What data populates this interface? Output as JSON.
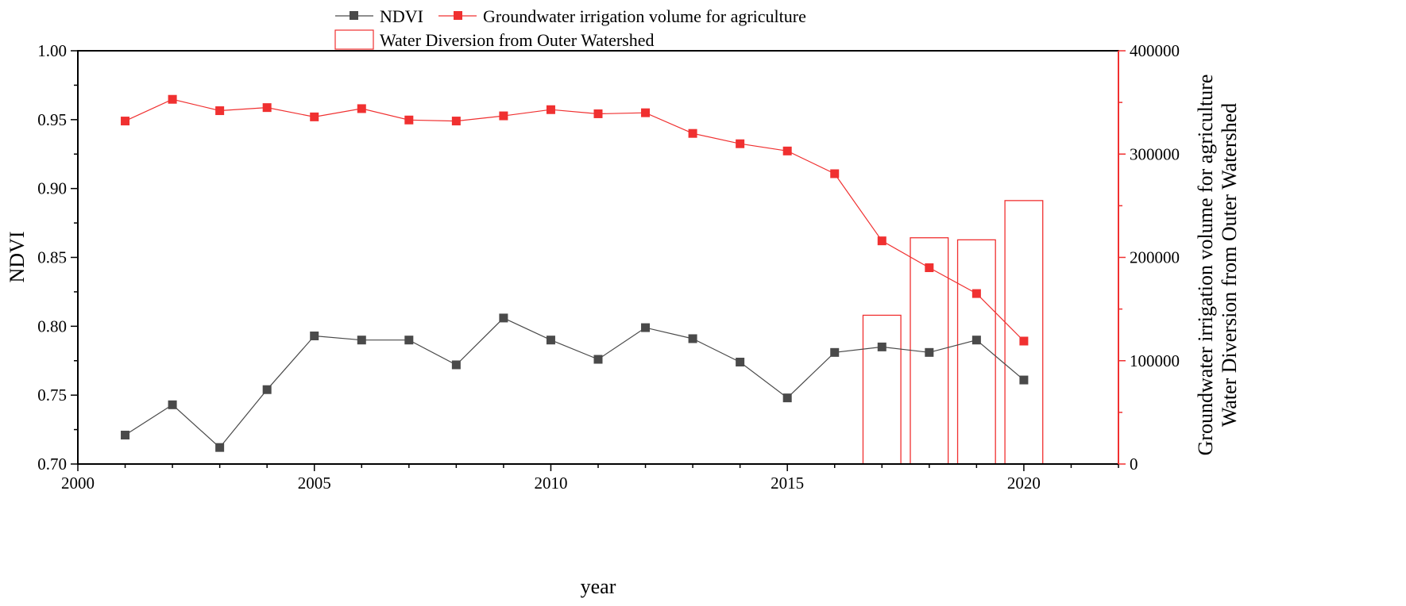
{
  "chart_data": {
    "type": "line",
    "title": "",
    "xlabel": "year",
    "xlim": [
      2000,
      2022
    ],
    "xticks": [
      2000,
      2005,
      2010,
      2015,
      2020
    ],
    "xtick_labels": [
      "2000",
      "2005",
      "2010",
      "2015",
      "2020"
    ],
    "ylabel": "NDVI",
    "ylim": [
      0.7,
      1.0
    ],
    "yticks": [
      0.7,
      0.75,
      0.8,
      0.85,
      0.9,
      0.95,
      1.0
    ],
    "ytick_labels": [
      "0.70",
      "0.75",
      "0.80",
      "0.85",
      "0.90",
      "0.95",
      "1.00"
    ],
    "y2label_line1": "Groundwater irrigation volume for agriculture",
    "y2label_line2": "Water Diversion from Outer Watershed",
    "y2lim": [
      0,
      400000
    ],
    "y2ticks": [
      0,
      100000,
      200000,
      300000,
      400000
    ],
    "y2tick_labels": [
      "0",
      "100000",
      "200000",
      "300000",
      "400000"
    ],
    "legend_position": "top",
    "series": [
      {
        "name": "NDVI",
        "kind": "line",
        "axis": "left",
        "color": "#4a4a4a",
        "x": [
          2001,
          2002,
          2003,
          2004,
          2005,
          2006,
          2007,
          2008,
          2009,
          2010,
          2011,
          2012,
          2013,
          2014,
          2015,
          2016,
          2017,
          2018,
          2019,
          2020
        ],
        "values": [
          0.721,
          0.743,
          0.712,
          0.754,
          0.793,
          0.79,
          0.79,
          0.772,
          0.806,
          0.79,
          0.776,
          0.799,
          0.791,
          0.774,
          0.748,
          0.781,
          0.785,
          0.781,
          0.79,
          0.761
        ]
      },
      {
        "name": "Groundwater irrigation volume for agriculture",
        "kind": "line",
        "axis": "right",
        "color": "#f03030",
        "x": [
          2001,
          2002,
          2003,
          2004,
          2005,
          2006,
          2007,
          2008,
          2009,
          2010,
          2011,
          2012,
          2013,
          2014,
          2015,
          2016,
          2017,
          2018,
          2019,
          2020
        ],
        "values": [
          332000,
          353000,
          342000,
          345000,
          336000,
          344000,
          333000,
          332000,
          337000,
          343000,
          339000,
          340000,
          320000,
          310000,
          303000,
          281000,
          216000,
          190000,
          165000,
          119000
        ]
      },
      {
        "name": "Water Diversion from Outer Watershed",
        "kind": "bar",
        "axis": "right",
        "color": "#f03030",
        "x": [
          2017,
          2018,
          2019,
          2020
        ],
        "values": [
          144000,
          219000,
          217000,
          255000
        ]
      }
    ]
  }
}
